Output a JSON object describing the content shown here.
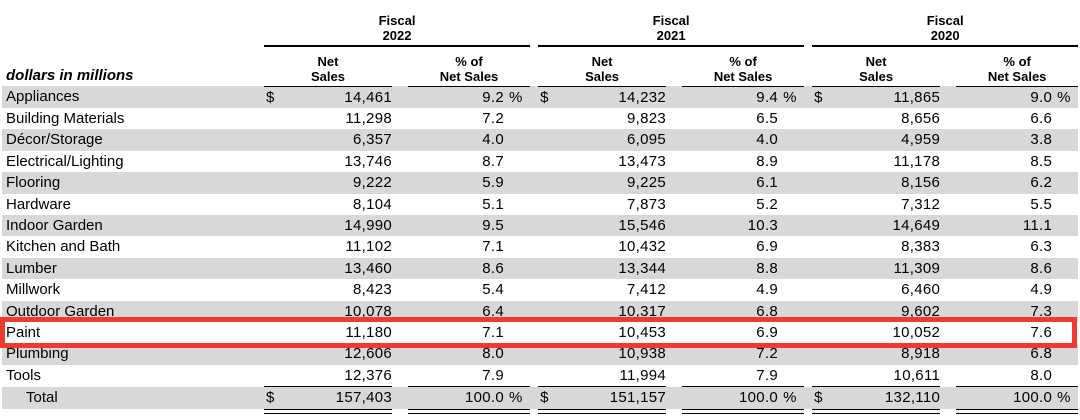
{
  "page": {
    "background": "#ffffff"
  },
  "annotation": {
    "type": "highlight-box",
    "around_row": "Paint",
    "color": "#f0392f"
  },
  "colors": {
    "row_shade": "#d8d8d8",
    "rule": "#000000",
    "text": "#000000"
  },
  "table": {
    "unit_label": "dollars in millions",
    "period_label": "Fiscal",
    "years": [
      "2022",
      "2021",
      "2020"
    ],
    "subcolumns": [
      {
        "line1": "Net",
        "line2": "Sales"
      },
      {
        "line1": "% of",
        "line2": "Net Sales"
      }
    ],
    "rows": [
      {
        "label": "Appliances",
        "shaded": true,
        "highlighted": false,
        "total": false,
        "values": [
          {
            "cur": "$",
            "net": "14,461",
            "pct": "9.2",
            "sym": "%"
          },
          {
            "cur": "$",
            "net": "14,232",
            "pct": "9.4",
            "sym": "%"
          },
          {
            "cur": "$",
            "net": "11,865",
            "pct": "9.0",
            "sym": "%"
          }
        ]
      },
      {
        "label": "Building Materials",
        "shaded": false,
        "highlighted": false,
        "total": false,
        "values": [
          {
            "cur": "",
            "net": "11,298",
            "pct": "7.2",
            "sym": ""
          },
          {
            "cur": "",
            "net": "9,823",
            "pct": "6.5",
            "sym": ""
          },
          {
            "cur": "",
            "net": "8,656",
            "pct": "6.6",
            "sym": ""
          }
        ]
      },
      {
        "label": "Décor/Storage",
        "shaded": true,
        "highlighted": false,
        "total": false,
        "values": [
          {
            "cur": "",
            "net": "6,357",
            "pct": "4.0",
            "sym": ""
          },
          {
            "cur": "",
            "net": "6,095",
            "pct": "4.0",
            "sym": ""
          },
          {
            "cur": "",
            "net": "4,959",
            "pct": "3.8",
            "sym": ""
          }
        ]
      },
      {
        "label": "Electrical/Lighting",
        "shaded": false,
        "highlighted": false,
        "total": false,
        "values": [
          {
            "cur": "",
            "net": "13,746",
            "pct": "8.7",
            "sym": ""
          },
          {
            "cur": "",
            "net": "13,473",
            "pct": "8.9",
            "sym": ""
          },
          {
            "cur": "",
            "net": "11,178",
            "pct": "8.5",
            "sym": ""
          }
        ]
      },
      {
        "label": "Flooring",
        "shaded": true,
        "highlighted": false,
        "total": false,
        "values": [
          {
            "cur": "",
            "net": "9,222",
            "pct": "5.9",
            "sym": ""
          },
          {
            "cur": "",
            "net": "9,225",
            "pct": "6.1",
            "sym": ""
          },
          {
            "cur": "",
            "net": "8,156",
            "pct": "6.2",
            "sym": ""
          }
        ]
      },
      {
        "label": "Hardware",
        "shaded": false,
        "highlighted": false,
        "total": false,
        "values": [
          {
            "cur": "",
            "net": "8,104",
            "pct": "5.1",
            "sym": ""
          },
          {
            "cur": "",
            "net": "7,873",
            "pct": "5.2",
            "sym": ""
          },
          {
            "cur": "",
            "net": "7,312",
            "pct": "5.5",
            "sym": ""
          }
        ]
      },
      {
        "label": "Indoor Garden",
        "shaded": true,
        "highlighted": false,
        "total": false,
        "values": [
          {
            "cur": "",
            "net": "14,990",
            "pct": "9.5",
            "sym": ""
          },
          {
            "cur": "",
            "net": "15,546",
            "pct": "10.3",
            "sym": ""
          },
          {
            "cur": "",
            "net": "14,649",
            "pct": "11.1",
            "sym": ""
          }
        ]
      },
      {
        "label": "Kitchen and Bath",
        "shaded": false,
        "highlighted": false,
        "total": false,
        "values": [
          {
            "cur": "",
            "net": "11,102",
            "pct": "7.1",
            "sym": ""
          },
          {
            "cur": "",
            "net": "10,432",
            "pct": "6.9",
            "sym": ""
          },
          {
            "cur": "",
            "net": "8,383",
            "pct": "6.3",
            "sym": ""
          }
        ]
      },
      {
        "label": "Lumber",
        "shaded": true,
        "highlighted": false,
        "total": false,
        "values": [
          {
            "cur": "",
            "net": "13,460",
            "pct": "8.6",
            "sym": ""
          },
          {
            "cur": "",
            "net": "13,344",
            "pct": "8.8",
            "sym": ""
          },
          {
            "cur": "",
            "net": "11,309",
            "pct": "8.6",
            "sym": ""
          }
        ]
      },
      {
        "label": "Millwork",
        "shaded": false,
        "highlighted": false,
        "total": false,
        "values": [
          {
            "cur": "",
            "net": "8,423",
            "pct": "5.4",
            "sym": ""
          },
          {
            "cur": "",
            "net": "7,412",
            "pct": "4.9",
            "sym": ""
          },
          {
            "cur": "",
            "net": "6,460",
            "pct": "4.9",
            "sym": ""
          }
        ]
      },
      {
        "label": "Outdoor Garden",
        "shaded": true,
        "highlighted": false,
        "total": false,
        "values": [
          {
            "cur": "",
            "net": "10,078",
            "pct": "6.4",
            "sym": ""
          },
          {
            "cur": "",
            "net": "10,317",
            "pct": "6.8",
            "sym": ""
          },
          {
            "cur": "",
            "net": "9,602",
            "pct": "7.3",
            "sym": ""
          }
        ]
      },
      {
        "label": "Paint",
        "shaded": false,
        "highlighted": true,
        "total": false,
        "values": [
          {
            "cur": "",
            "net": "11,180",
            "pct": "7.1",
            "sym": ""
          },
          {
            "cur": "",
            "net": "10,453",
            "pct": "6.9",
            "sym": ""
          },
          {
            "cur": "",
            "net": "10,052",
            "pct": "7.6",
            "sym": ""
          }
        ]
      },
      {
        "label": "Plumbing",
        "shaded": true,
        "highlighted": false,
        "total": false,
        "values": [
          {
            "cur": "",
            "net": "12,606",
            "pct": "8.0",
            "sym": ""
          },
          {
            "cur": "",
            "net": "10,938",
            "pct": "7.2",
            "sym": ""
          },
          {
            "cur": "",
            "net": "8,918",
            "pct": "6.8",
            "sym": ""
          }
        ]
      },
      {
        "label": "Tools",
        "shaded": false,
        "highlighted": false,
        "total": false,
        "values": [
          {
            "cur": "",
            "net": "12,376",
            "pct": "7.9",
            "sym": ""
          },
          {
            "cur": "",
            "net": "11,994",
            "pct": "7.9",
            "sym": ""
          },
          {
            "cur": "",
            "net": "10,611",
            "pct": "8.0",
            "sym": ""
          }
        ]
      },
      {
        "label": "Total",
        "shaded": true,
        "highlighted": false,
        "total": true,
        "values": [
          {
            "cur": "$",
            "net": "157,403",
            "pct": "100.0",
            "sym": "%"
          },
          {
            "cur": "$",
            "net": "151,157",
            "pct": "100.0",
            "sym": "%"
          },
          {
            "cur": "$",
            "net": "132,110",
            "pct": "100.0",
            "sym": "%"
          }
        ]
      }
    ]
  }
}
